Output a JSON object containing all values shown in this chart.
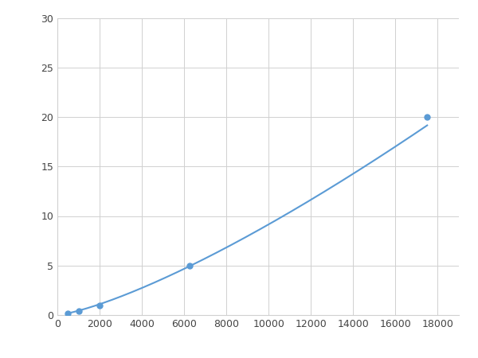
{
  "x_points": [
    500,
    1000,
    2000,
    6250,
    17500
  ],
  "y_points": [
    0.2,
    0.4,
    1.0,
    5.0,
    20.0
  ],
  "line_color": "#5b9bd5",
  "marker_color": "#5b9bd5",
  "marker_size": 5,
  "line_width": 1.5,
  "xlim": [
    0,
    19000
  ],
  "ylim": [
    0,
    30
  ],
  "xticks": [
    0,
    2000,
    4000,
    6000,
    8000,
    10000,
    12000,
    14000,
    16000,
    18000
  ],
  "yticks": [
    0,
    5,
    10,
    15,
    20,
    25,
    30
  ],
  "grid_color": "#d0d0d0",
  "background_color": "#ffffff",
  "tick_fontsize": 9,
  "figsize": [
    6.0,
    4.5
  ],
  "dpi": 100
}
